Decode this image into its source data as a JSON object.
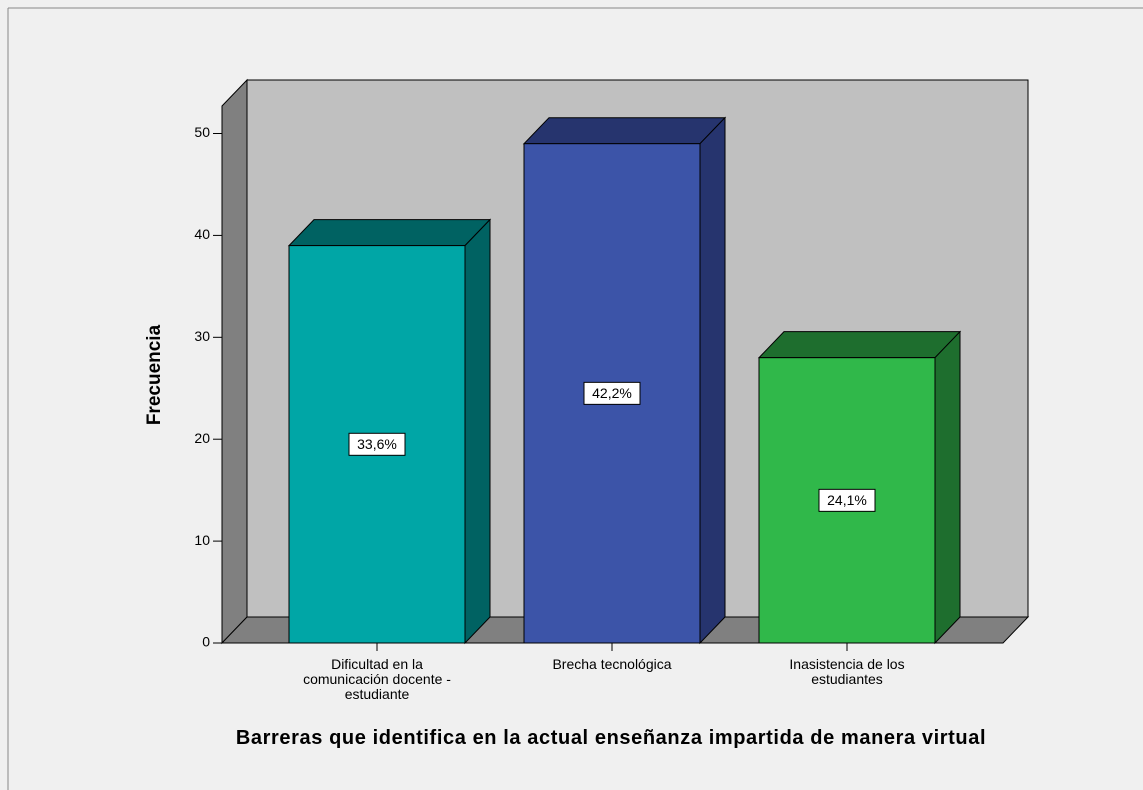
{
  "chart_data": {
    "type": "bar3d",
    "categories": [
      "Dificultad en la comunicación docente - estudiante",
      "Brecha tecnológica",
      "Inasistencia de los estudiantes"
    ],
    "values": [
      39,
      49,
      28
    ],
    "percent_values": [
      33.6,
      42.2,
      24.1
    ],
    "value_labels": [
      "33,6%",
      "42,2%",
      "24,1%"
    ],
    "colors": [
      "#00a6a6",
      "#3c54a8",
      "#30b84a"
    ],
    "side_colors": [
      "#006262",
      "#26346e",
      "#1e6e2e"
    ],
    "ylabel": "Frecuencia",
    "xlabel": "Barreras que identifica en la actual enseñanza impartida de manera virtual",
    "ylim": [
      0,
      52.7
    ],
    "yticks": [
      0,
      10,
      20,
      30,
      40,
      50
    ]
  }
}
